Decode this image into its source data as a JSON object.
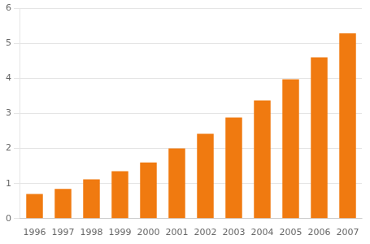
{
  "chart_data": {
    "type": "bar",
    "categories": [
      "1996",
      "1997",
      "1998",
      "1999",
      "2000",
      "2001",
      "2002",
      "2003",
      "2004",
      "2005",
      "2006",
      "2007"
    ],
    "values": [
      0.7,
      0.85,
      1.12,
      1.35,
      1.6,
      2.0,
      2.42,
      2.88,
      3.37,
      3.97,
      4.6,
      5.28
    ],
    "color": "#F07A10",
    "ylim": [
      0,
      6
    ],
    "yticks": [
      0,
      1,
      2,
      3,
      4,
      5,
      6
    ],
    "grid": true
  }
}
